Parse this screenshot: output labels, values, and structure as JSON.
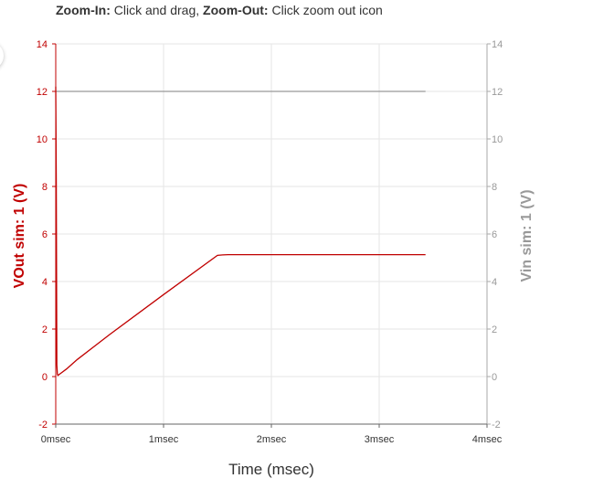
{
  "toolbar": {
    "zoom_in_label": "Zoom-In:",
    "zoom_in_text": " Click and drag, ",
    "zoom_out_label": "Zoom-Out:",
    "zoom_out_text": " Click zoom out icon"
  },
  "chart_data": {
    "type": "line",
    "xlabel": "Time (msec)",
    "ylabel_left": "VOut sim: 1 (V)",
    "ylabel_right": "Vin sim: 1 (V)",
    "xlim": [
      0,
      4
    ],
    "ylim_left": [
      -2,
      14
    ],
    "ylim_right": [
      -2,
      14
    ],
    "x_ticks": [
      0,
      1,
      2,
      3,
      4
    ],
    "x_tick_labels": [
      "0msec",
      "1msec",
      "2msec",
      "3msec",
      "4msec"
    ],
    "y_ticks": [
      -2,
      0,
      2,
      4,
      6,
      8,
      10,
      12,
      14
    ],
    "y_tick_labels": [
      "-2",
      "0",
      "2",
      "4",
      "6",
      "8",
      "10",
      "12",
      "14"
    ],
    "grid": true,
    "colors": {
      "vout": "#c00000",
      "vin": "#999999",
      "grid": "#e6e6e6"
    },
    "series": [
      {
        "key": "vin",
        "axis": "right",
        "x": [
          0,
          3.43
        ],
        "y": [
          12,
          12
        ]
      },
      {
        "key": "vout",
        "axis": "left",
        "x": [
          0,
          0.005,
          0.01,
          0.015,
          0.02,
          0.05,
          0.1,
          0.15,
          0.2,
          0.5,
          1.0,
          1.5,
          1.55,
          1.6,
          1.7,
          2.0,
          3.0,
          3.43
        ],
        "y": [
          12.2,
          8.0,
          0.5,
          0.1,
          0.05,
          0.15,
          0.32,
          0.52,
          0.72,
          1.77,
          3.45,
          5.1,
          5.12,
          5.13,
          5.13,
          5.13,
          5.13,
          5.13
        ]
      }
    ]
  }
}
